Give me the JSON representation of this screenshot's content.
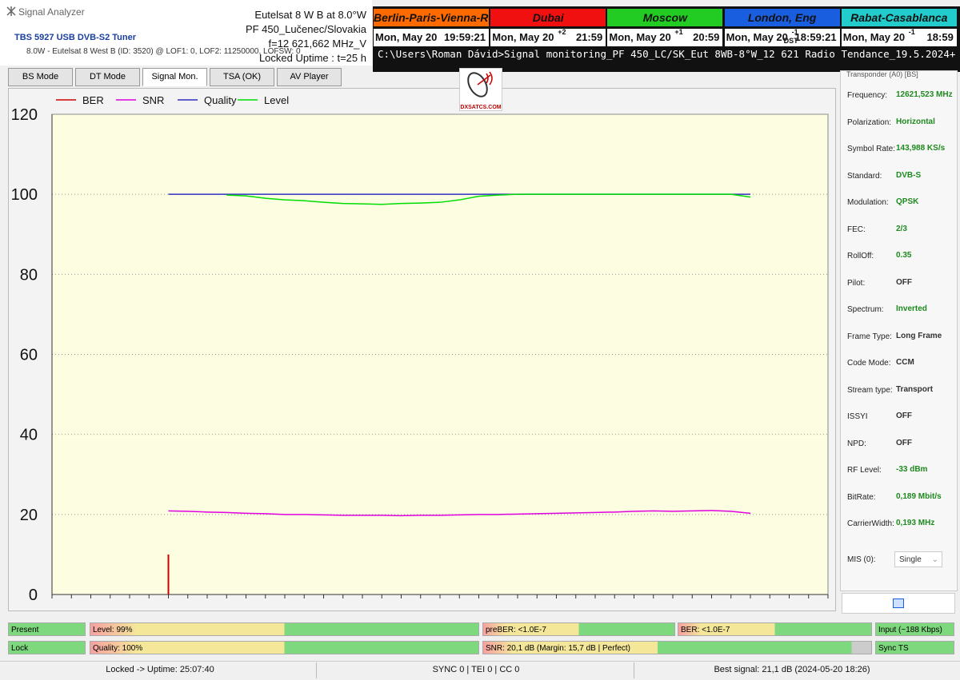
{
  "window": {
    "title": "Signal Analyzer"
  },
  "tuner": {
    "name": "TBS 5927 USB DVB-S2 Tuner",
    "details": "8.0W - Eutelsat 8 West B (ID: 3520) @ LOF1: 0, LOF2: 11250000, LOFSW: 0"
  },
  "info": [
    "Eutelsat 8 W B at 8.0°W",
    "PF 450_Lučenec/Slovakia",
    "f=12 621,662 MHz_V",
    "Locked Uptime : t=25 h"
  ],
  "clocks": [
    {
      "city": "Berlin-Paris-Vienna-Roma",
      "color": "#ff6a00",
      "date": "Mon, May 20",
      "time": "19:59:21"
    },
    {
      "city": "Dubai",
      "color": "#f01010",
      "date": "Mon, May 20",
      "offset": "+2",
      "time": "21:59"
    },
    {
      "city": "Moscow",
      "color": "#22cc22",
      "date": "Mon, May 20",
      "offset": "+1",
      "time": "20:59"
    },
    {
      "city": "London, Eng",
      "color": "#1a5ee0",
      "date": "Mon, May 20",
      "offset": "-1",
      "offset_note": "DST",
      "time": "18:59:21"
    },
    {
      "city": "Rabat-Casablanca",
      "color": "#22cccc",
      "date": "Mon, May 20",
      "offset": "-1",
      "time": "18:59"
    }
  ],
  "console": "C:\\Users\\Roman Dávid>Signal monitoring_PF 450_LC/SK_Eut 8WB-8°W_12 621 Radio Tendance_19.5.2024+",
  "tabs": [
    "BS Mode",
    "DT Mode",
    "Signal Mon.",
    "TSA (OK)",
    "AV Player"
  ],
  "logo": "DXSATCS.COM",
  "transponder": {
    "header": "Transponder (A0) [BS]",
    "fields": [
      {
        "label": "Frequency:",
        "value": "12621,523 MHz",
        "color": "#1e8a1e"
      },
      {
        "label": "Polarization:",
        "value": "Horizontal",
        "color": "#1e8a1e"
      },
      {
        "label": "Symbol Rate:",
        "value": "143,988 KS/s",
        "color": "#1e8a1e"
      },
      {
        "label": "Standard:",
        "value": "DVB-S",
        "color": "#1e8a1e"
      },
      {
        "label": "Modulation:",
        "value": "QPSK",
        "color": "#1e8a1e"
      },
      {
        "label": "FEC:",
        "value": "2/3",
        "color": "#1e8a1e"
      },
      {
        "label": "RollOff:",
        "value": "0.35",
        "color": "#1e8a1e"
      },
      {
        "label": "Pilot:",
        "value": "OFF",
        "color": "#333333"
      },
      {
        "label": "Spectrum:",
        "value": "Inverted",
        "color": "#1e8a1e"
      },
      {
        "label": "Frame Type:",
        "value": "Long Frame",
        "color": "#333333"
      },
      {
        "label": "Code Mode:",
        "value": "CCM",
        "color": "#333333"
      },
      {
        "label": "Stream type:",
        "value": "Transport",
        "color": "#333333"
      },
      {
        "label": "ISSYI",
        "value": "OFF",
        "color": "#333333"
      },
      {
        "label": "NPD:",
        "value": "OFF",
        "color": "#333333"
      },
      {
        "label": "RF Level:",
        "value": "-33 dBm",
        "color": "#1e8a1e"
      },
      {
        "label": "BitRate:",
        "value": "0,189 Mbit/s",
        "color": "#1e8a1e"
      },
      {
        "label": "CarrierWidth:",
        "value": "0,193 MHz",
        "color": "#1e8a1e"
      }
    ],
    "mis": {
      "label": "MIS (0):",
      "value": "Single"
    }
  },
  "indicators": {
    "present": "Present",
    "level": "Level: 99%",
    "preber": "preBER: <1.0E-7",
    "ber": "BER: <1.0E-7",
    "input": "Input (~188 Kbps)",
    "lock": "Lock",
    "quality": "Quality: 100%",
    "snr": "SNR: 20,1 dB (Margin: 15,7 dB | Perfect)",
    "sync": "Sync TS"
  },
  "status": [
    "Locked -> Uptime: 25:07:40",
    "SYNC 0 | TEI 0 | CC 0",
    "Best signal: 21,1 dB (2024-05-20 18:26)"
  ],
  "chart_data": {
    "type": "line",
    "ylim": [
      0,
      120
    ],
    "yticks": [
      0,
      20,
      40,
      60,
      80,
      100,
      120
    ],
    "grid": true,
    "categories": [
      null,
      null,
      null,
      null,
      null,
      null,
      null,
      null,
      null,
      null,
      null,
      null,
      null,
      null,
      null,
      null,
      null,
      null,
      null,
      null,
      null,
      null,
      null,
      null,
      null,
      null,
      null,
      null,
      null,
      null,
      null,
      null,
      null,
      null,
      null,
      null,
      null,
      null,
      null,
      null,
      null
    ],
    "series": [
      {
        "name": "BER",
        "color": "#d00000",
        "values": [
          null,
          null,
          null,
          null,
          null,
          null,
          10,
          null,
          null,
          null,
          null,
          null,
          null,
          null,
          null,
          null,
          null,
          null,
          null,
          null,
          null,
          null,
          null,
          null,
          null,
          null,
          null,
          null,
          null,
          null,
          null,
          null,
          null,
          null,
          null,
          null,
          null,
          null,
          null,
          null,
          null
        ]
      },
      {
        "name": "SNR",
        "color": "#e000e0",
        "values": [
          null,
          null,
          null,
          null,
          null,
          null,
          20.9,
          20.8,
          20.6,
          20.5,
          20.3,
          20.2,
          20.0,
          20.0,
          19.9,
          19.8,
          19.8,
          19.8,
          19.7,
          19.8,
          19.8,
          19.9,
          20.0,
          20.0,
          20.1,
          20.2,
          20.3,
          20.4,
          20.5,
          20.6,
          20.8,
          20.9,
          20.8,
          20.9,
          21.0,
          20.8,
          20.3,
          null,
          null,
          null,
          null
        ]
      },
      {
        "name": "Quality",
        "color": "#3030c0",
        "values": [
          null,
          null,
          null,
          null,
          null,
          null,
          100,
          100,
          100,
          100,
          100,
          100,
          100,
          100,
          100,
          100,
          100,
          100,
          100,
          100,
          100,
          100,
          100,
          100,
          100,
          100,
          100,
          100,
          100,
          100,
          100,
          100,
          100,
          100,
          100,
          100,
          100,
          null,
          null,
          null,
          null
        ]
      },
      {
        "name": "Level",
        "color": "#00dd00",
        "values": [
          null,
          null,
          null,
          null,
          null,
          null,
          null,
          null,
          null,
          99.8,
          99.6,
          99.0,
          98.6,
          98.4,
          98.0,
          97.7,
          97.6,
          97.5,
          97.7,
          97.8,
          98.0,
          98.6,
          99.5,
          99.8,
          100,
          100,
          100,
          100,
          100,
          100,
          100,
          100,
          100,
          100,
          100,
          100,
          99.3,
          null,
          null,
          null,
          null
        ]
      }
    ]
  }
}
